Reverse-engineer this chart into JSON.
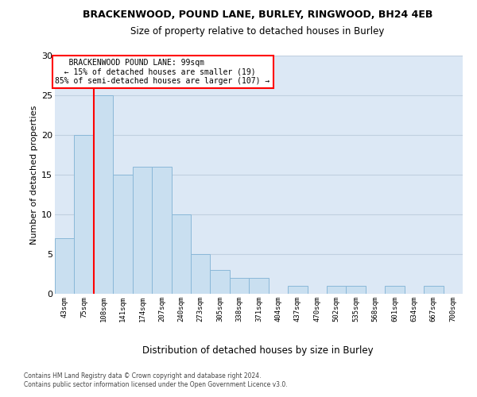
{
  "title1": "BRACKENWOOD, POUND LANE, BURLEY, RINGWOOD, BH24 4EB",
  "title2": "Size of property relative to detached houses in Burley",
  "xlabel": "Distribution of detached houses by size in Burley",
  "ylabel": "Number of detached properties",
  "bar_labels": [
    "43sqm",
    "75sqm",
    "108sqm",
    "141sqm",
    "174sqm",
    "207sqm",
    "240sqm",
    "273sqm",
    "305sqm",
    "338sqm",
    "371sqm",
    "404sqm",
    "437sqm",
    "470sqm",
    "502sqm",
    "535sqm",
    "568sqm",
    "601sqm",
    "634sqm",
    "667sqm",
    "700sqm"
  ],
  "bar_values": [
    7,
    20,
    25,
    15,
    16,
    16,
    10,
    5,
    3,
    2,
    2,
    0,
    1,
    0,
    1,
    1,
    0,
    1,
    0,
    1,
    0
  ],
  "bar_color": "#c9dff0",
  "bar_edge_color": "#8ab8d8",
  "grid_color": "#c0d0e0",
  "bg_color": "#dce8f5",
  "annotation_line1": "   BRACKENWOOD POUND LANE: 99sqm",
  "annotation_line2": "  ← 15% of detached houses are smaller (19)",
  "annotation_line3": "85% of semi-detached houses are larger (107) →",
  "vline_x": 1.5,
  "ylim": [
    0,
    30
  ],
  "yticks": [
    0,
    5,
    10,
    15,
    20,
    25,
    30
  ],
  "footnote1": "Contains HM Land Registry data © Crown copyright and database right 2024.",
  "footnote2": "Contains public sector information licensed under the Open Government Licence v3.0."
}
